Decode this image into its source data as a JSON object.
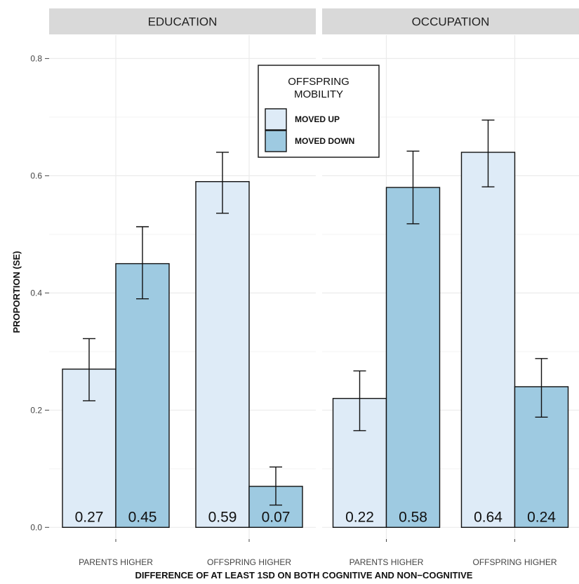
{
  "chart_data": {
    "type": "bar",
    "panels": [
      {
        "title": "EDUCATION",
        "categories": [
          "PARENTS HIGHER",
          "OFFSPRING HIGHER"
        ]
      },
      {
        "title": "OCCUPATION",
        "categories": [
          "PARENTS HIGHER",
          "OFFSPRING HIGHER"
        ]
      }
    ],
    "series": [
      {
        "name": "MOVED UP",
        "color": "#deebf7",
        "values": [
          [
            0.27,
            0.59
          ],
          [
            0.22,
            0.64
          ]
        ],
        "labels": [
          [
            "0.27",
            "0.59"
          ],
          [
            "0.22",
            "0.64"
          ]
        ],
        "se_low": [
          [
            0.216,
            0.536
          ],
          [
            0.165,
            0.581
          ]
        ],
        "se_high": [
          [
            0.322,
            0.64
          ],
          [
            0.267,
            0.695
          ]
        ]
      },
      {
        "name": "MOVED DOWN",
        "color": "#9ecae1",
        "values": [
          [
            0.45,
            0.07
          ],
          [
            0.58,
            0.24
          ]
        ],
        "labels": [
          [
            "0.45",
            "0.07"
          ],
          [
            "0.58",
            "0.24"
          ]
        ],
        "se_low": [
          [
            0.39,
            0.038
          ],
          [
            0.518,
            0.188
          ]
        ],
        "se_high": [
          [
            0.513,
            0.103
          ],
          [
            0.642,
            0.288
          ]
        ]
      }
    ],
    "xlabel": "DIFFERENCE OF AT LEAST 1SD ON BOTH COGNITIVE AND NON−COGNITIVE",
    "ylabel": "PROPORTION (SE)",
    "ylim": [
      -0.02,
      0.84
    ],
    "yticks": [
      0.0,
      0.2,
      0.4,
      0.6,
      0.8
    ],
    "ytick_labels": [
      "0.0",
      "0.2",
      "0.4",
      "0.6",
      "0.8"
    ],
    "legend": {
      "title_lines": [
        "OFFSPRING",
        "MOBILITY"
      ],
      "position": "top-center"
    },
    "grid": true,
    "panel_background": "#ffffff",
    "strip_background": "#d9d9d9",
    "grid_color": "#ebebeb",
    "bar_outline": "#111111"
  }
}
